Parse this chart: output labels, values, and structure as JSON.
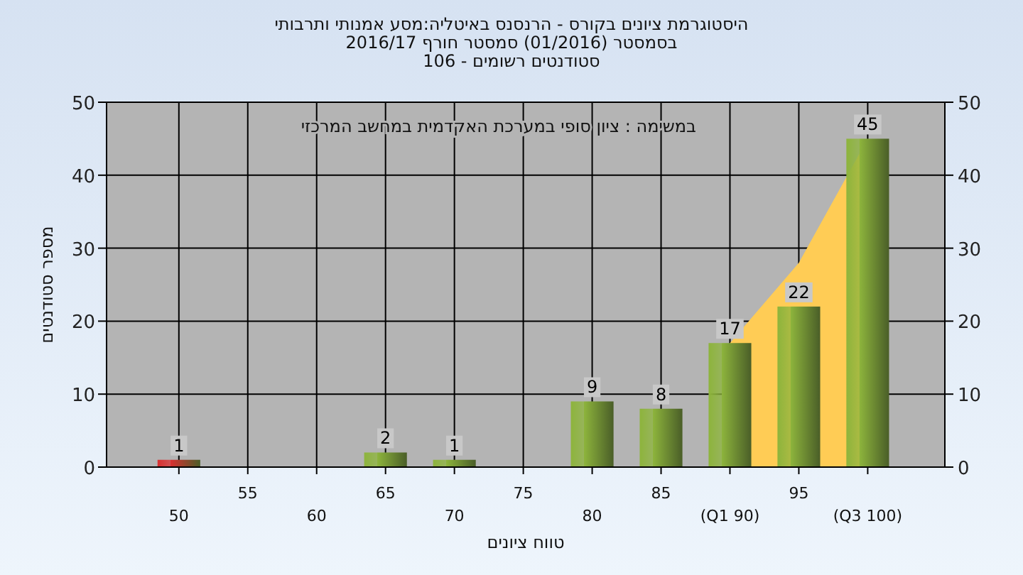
{
  "chart_data": {
    "type": "bar",
    "title": "היסטוגרמת ציונים בקורס - הרנסנס באיטליה:מסע אמנותי ותרבותי",
    "subtitle": "בסמסטר  (01/2016)  סמסטר חורף 2016/17\nסטודנטים רשומים - 106",
    "xlabel": "טווח ציונים",
    "ylabel": "מספר סטודנטים",
    "annotations": [
      "במשימה : ציון סופי במערכת האקדמית במחשב המרכזי"
    ],
    "categories": [
      "50",
      "55",
      "60",
      "65",
      "70",
      "75",
      "80",
      "85",
      "(Q1 90)",
      "95",
      "(Q3 100)"
    ],
    "series": [
      {
        "type": "area",
        "color": "#ffcc55",
        "values": [
          null,
          null,
          null,
          null,
          null,
          null,
          null,
          null,
          17,
          28,
          45
        ]
      },
      {
        "colors": [
          "#d83030",
          "#8db43c",
          "#8db43c",
          "#8db43c",
          "#8db43c",
          "#8db43c",
          "#8db43c",
          "#8db43c",
          "#8db43c",
          "#8db43c",
          "#8db43c"
        ],
        "values": [
          1,
          0,
          0,
          2,
          1,
          0,
          9,
          8,
          17,
          22,
          45
        ],
        "value_labels": [
          "1",
          null,
          null,
          "2",
          "1",
          null,
          "9",
          "8",
          "17",
          "22",
          "45"
        ]
      }
    ],
    "ylim": [
      0,
      50
    ],
    "yticks": [
      0,
      10,
      20,
      30,
      40,
      50
    ],
    "y2lim": [
      0,
      50
    ],
    "y2ticks": [
      0,
      10,
      20,
      30,
      40,
      50
    ],
    "grid": true
  }
}
